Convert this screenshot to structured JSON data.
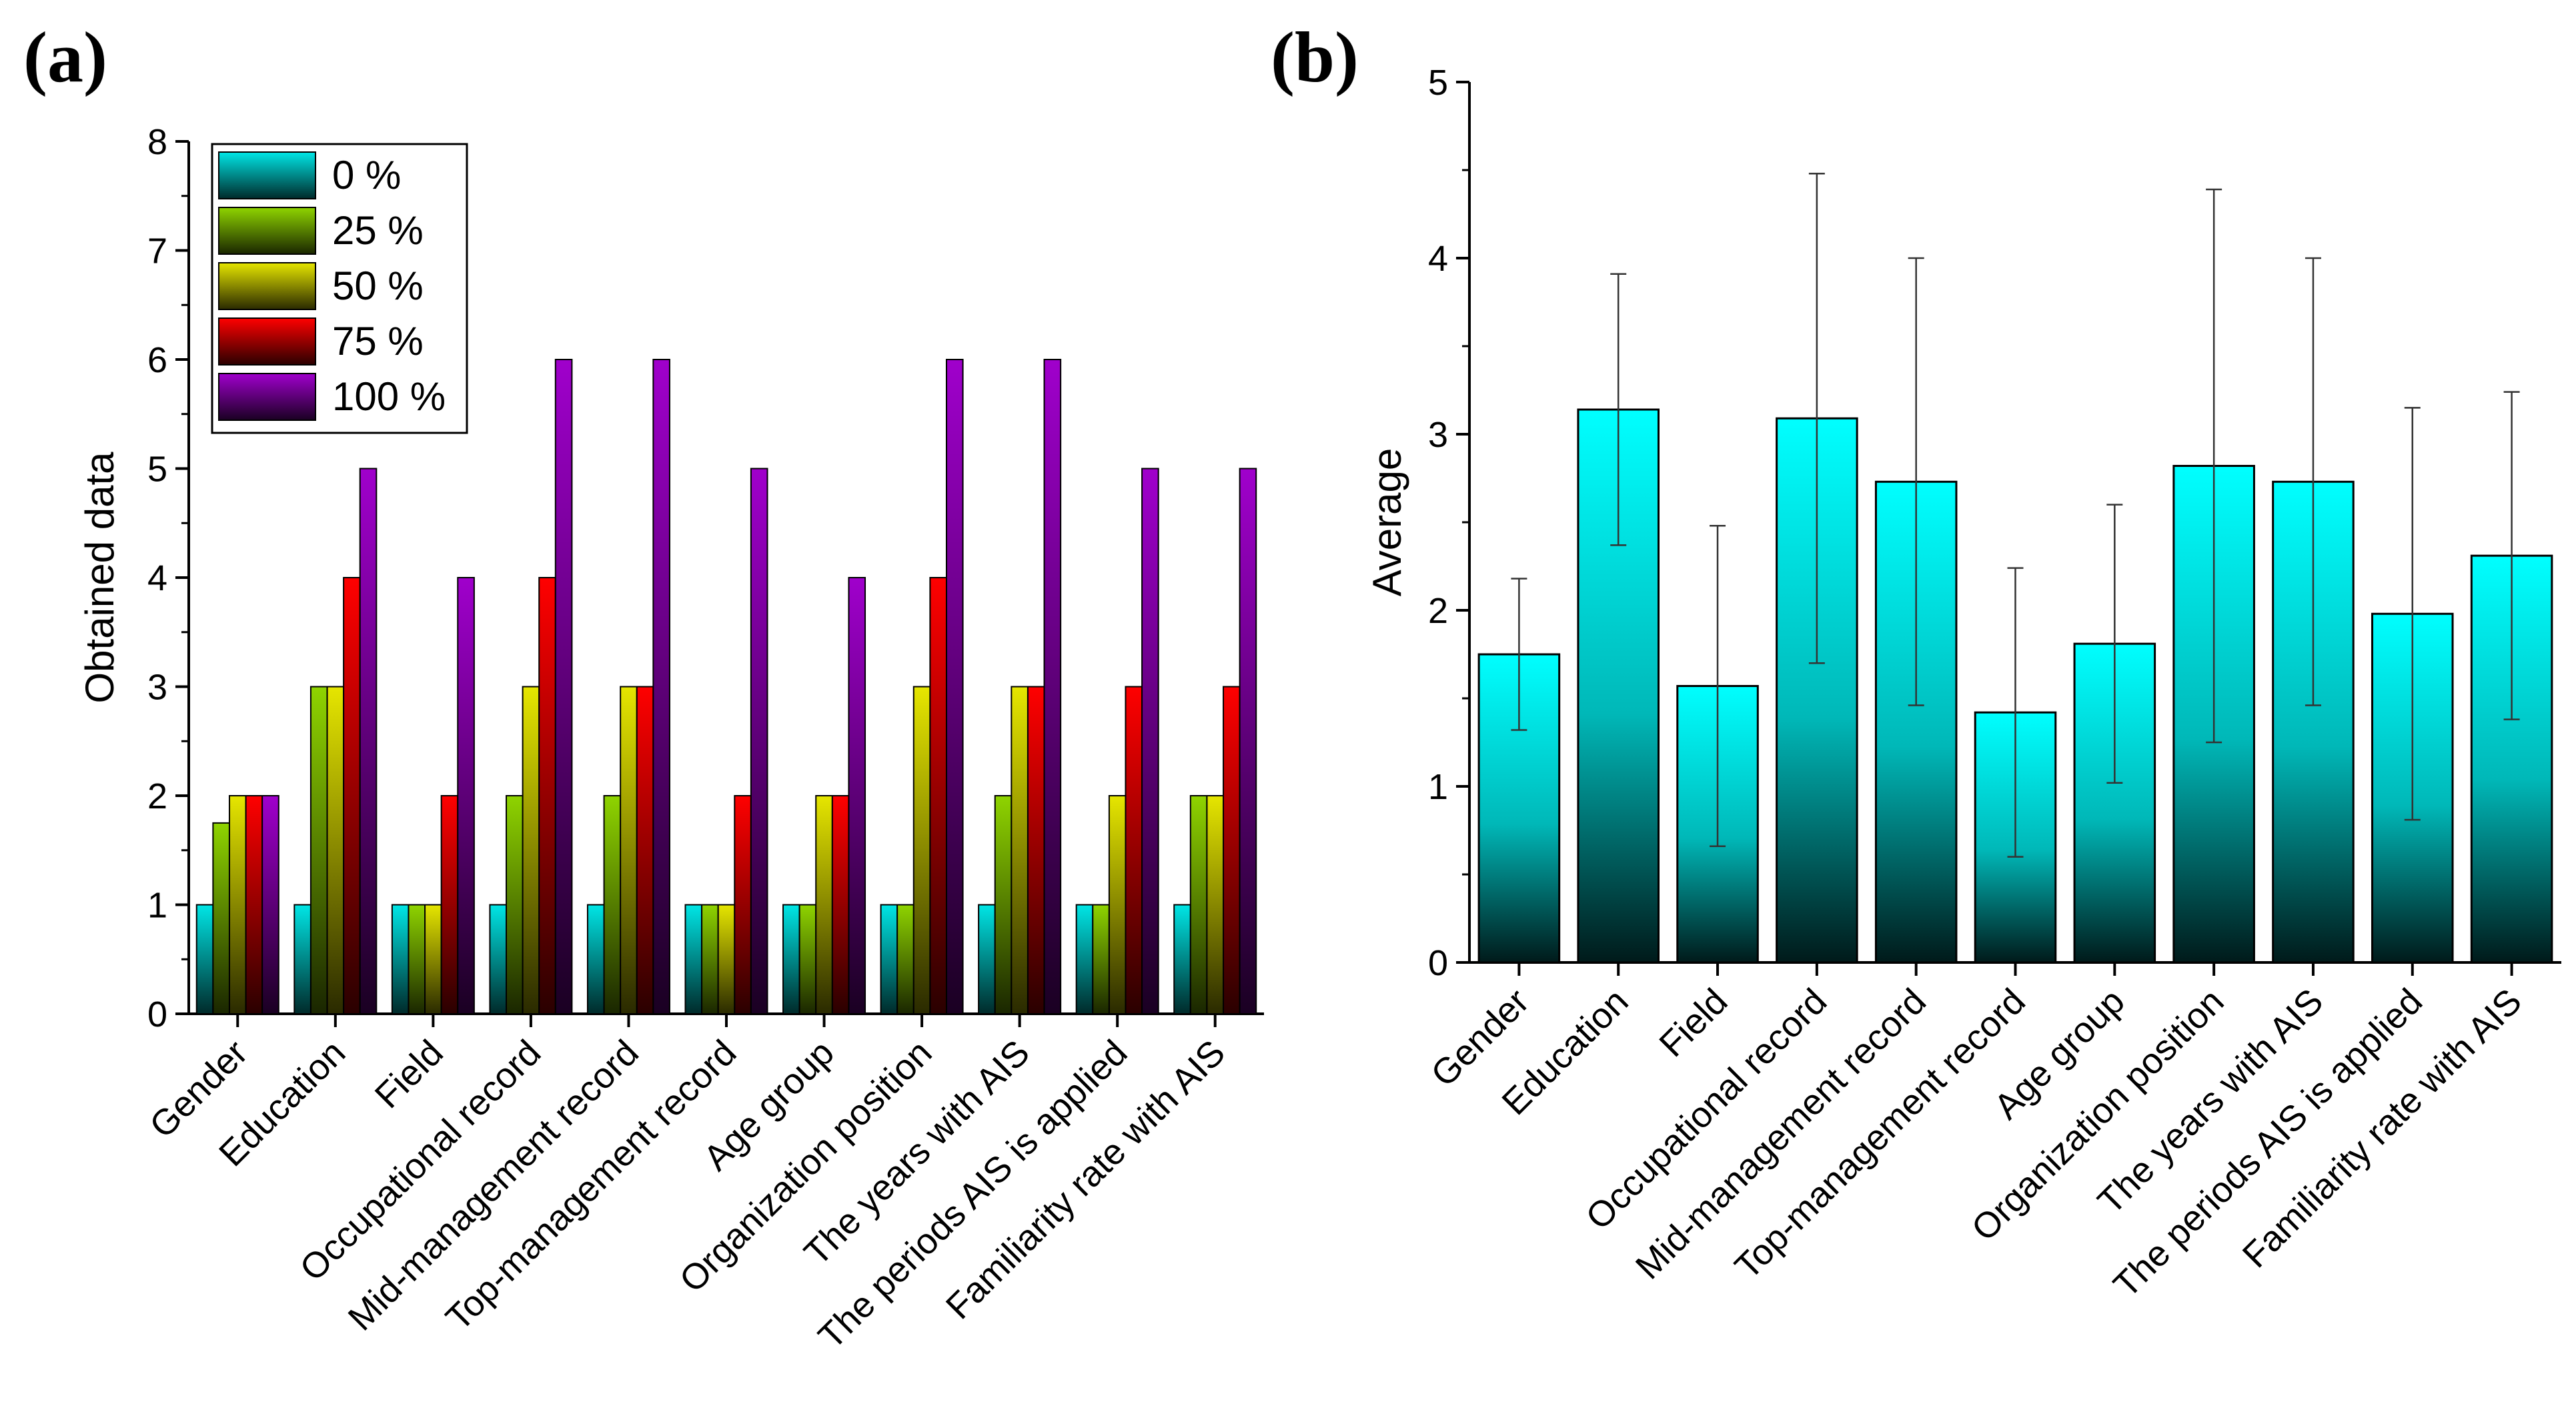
{
  "chart_data": [
    {
      "panel": "(a)",
      "type": "bar",
      "ylabel": "Obtained data",
      "xlabel": "",
      "ylim": [
        0,
        8
      ],
      "yticks": [
        0,
        1,
        2,
        3,
        4,
        5,
        6,
        7,
        8
      ],
      "legend_position": "top-left",
      "categories": [
        "Gender",
        "Education",
        "Field",
        "Occupational record",
        "Mid-management record",
        "Top-management record",
        "Age group",
        "Organization position",
        "The years with AIS",
        "The periods AIS is applied",
        "Familiarity rate with AIS"
      ],
      "series": [
        {
          "name": "0 %",
          "color": "#00e6e6",
          "values": [
            1,
            1,
            1,
            1,
            1,
            1,
            1,
            1,
            1,
            1,
            1
          ]
        },
        {
          "name": "25 %",
          "color": "#8fd400",
          "values": [
            1.75,
            3,
            1,
            2,
            2,
            1,
            1,
            1,
            2,
            1,
            2
          ]
        },
        {
          "name": "50 %",
          "color": "#e6e600",
          "values": [
            2,
            3,
            1,
            3,
            3,
            1,
            2,
            3,
            3,
            2,
            2
          ]
        },
        {
          "name": "75 %",
          "color": "#ff0000",
          "values": [
            2,
            4,
            2,
            4,
            3,
            2,
            2,
            4,
            3,
            3,
            3
          ]
        },
        {
          "name": "100 %",
          "color": "#a000cc",
          "values": [
            2,
            5,
            4,
            6,
            6,
            5,
            4,
            6,
            6,
            5,
            5
          ]
        }
      ]
    },
    {
      "panel": "(b)",
      "type": "bar",
      "ylabel": "Average",
      "xlabel": "",
      "ylim": [
        0,
        5
      ],
      "yticks": [
        0,
        1,
        2,
        3,
        4,
        5
      ],
      "categories": [
        "Gender",
        "Education",
        "Field",
        "Occupational record",
        "Mid-management record",
        "Top-management record",
        "Age group",
        "Organization position",
        "The years with AIS",
        "The periods AIS is applied",
        "Familiarity rate with AIS"
      ],
      "series": [
        {
          "name": "Average",
          "color": "#00ffff",
          "values": [
            1.75,
            3.14,
            1.57,
            3.09,
            2.73,
            1.42,
            1.81,
            2.82,
            2.73,
            1.98,
            2.31
          ]
        }
      ],
      "error_bars": {
        "lower": [
          1.32,
          2.37,
          0.66,
          1.7,
          1.46,
          0.6,
          1.02,
          1.25,
          1.46,
          0.81,
          1.38
        ],
        "upper": [
          2.18,
          3.91,
          2.48,
          4.48,
          4.0,
          2.24,
          2.6,
          4.39,
          4.0,
          3.15,
          3.24
        ]
      }
    }
  ]
}
